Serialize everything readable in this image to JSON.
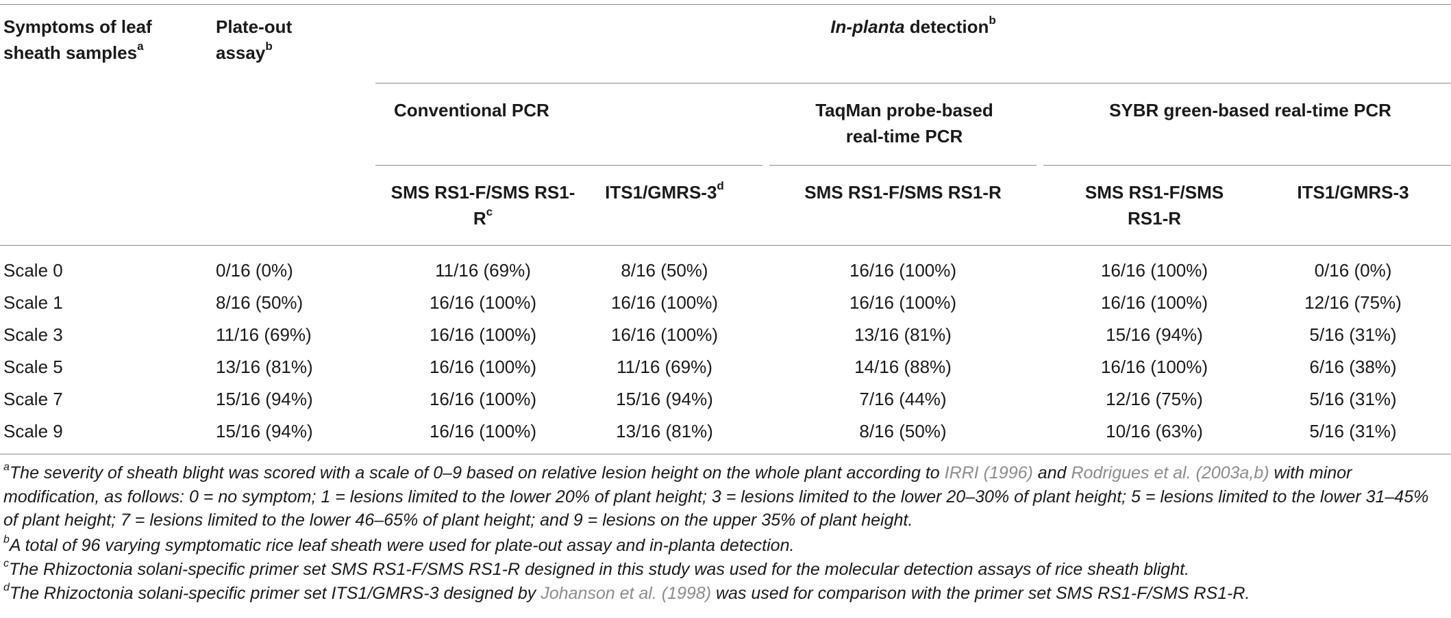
{
  "headers": {
    "col1": "Symptoms of leaf sheath samples",
    "col1_sup": "a",
    "col2": "Plate-out assay",
    "col2_sup": "b",
    "group_in_planta_italic": "In-planta",
    "group_in_planta_rest": " detection",
    "group_in_planta_sup": "b",
    "sub_conventional": "Conventional PCR",
    "sub_taqman": "TaqMan probe-based real-time PCR",
    "sub_sybr": "SYBR green-based real-time PCR",
    "primer_conv_sms": "SMS RS1-F/SMS RS1-R",
    "primer_conv_sms_sup": "c",
    "primer_conv_its": "ITS1/GMRS-3",
    "primer_conv_its_sup": "d",
    "primer_taq_sms": "SMS RS1-F/SMS RS1-R",
    "primer_sybr_sms": "SMS RS1-F/SMS RS1-R",
    "primer_sybr_its": "ITS1/GMRS-3"
  },
  "rows": [
    {
      "scale": "Scale 0",
      "plate": "0/16 (0%)",
      "conv_sms": "11/16 (69%)",
      "conv_its": "8/16 (50%)",
      "taq_sms": "16/16 (100%)",
      "sybr_sms": "16/16 (100%)",
      "sybr_its": "0/16 (0%)"
    },
    {
      "scale": "Scale 1",
      "plate": "8/16 (50%)",
      "conv_sms": "16/16 (100%)",
      "conv_its": "16/16 (100%)",
      "taq_sms": "16/16 (100%)",
      "sybr_sms": "16/16 (100%)",
      "sybr_its": "12/16 (75%)"
    },
    {
      "scale": "Scale 3",
      "plate": "11/16 (69%)",
      "conv_sms": "16/16 (100%)",
      "conv_its": "16/16 (100%)",
      "taq_sms": "13/16 (81%)",
      "sybr_sms": "15/16 (94%)",
      "sybr_its": "5/16 (31%)"
    },
    {
      "scale": "Scale 5",
      "plate": "13/16 (81%)",
      "conv_sms": "16/16 (100%)",
      "conv_its": "11/16 (69%)",
      "taq_sms": "14/16 (88%)",
      "sybr_sms": "16/16 (100%)",
      "sybr_its": "6/16 (38%)"
    },
    {
      "scale": "Scale 7",
      "plate": "15/16 (94%)",
      "conv_sms": "16/16 (100%)",
      "conv_its": "15/16 (94%)",
      "taq_sms": "7/16 (44%)",
      "sybr_sms": "12/16 (75%)",
      "sybr_its": "5/16 (31%)"
    },
    {
      "scale": "Scale 9",
      "plate": "15/16 (94%)",
      "conv_sms": "16/16 (100%)",
      "conv_its": "13/16 (81%)",
      "taq_sms": "8/16 (50%)",
      "sybr_sms": "10/16 (63%)",
      "sybr_its": "5/16 (31%)"
    }
  ],
  "footnotes": {
    "a_sup": "a",
    "a_text1": "The severity of sheath blight was scored with a scale of 0–9 based on relative lesion height on the whole plant according to ",
    "a_ref1": "IRRI (1996)",
    "a_text2": " and ",
    "a_ref2": "Rodrigues et al. (2003a,b)",
    "a_text3": " with minor modification, as follows: 0 = no symptom; 1 = lesions limited to the lower 20% of plant height; 3 = lesions limited to the lower 20–30% of plant height; 5 = lesions limited to the lower 31–45% of plant height; 7 = lesions limited to the lower 46–65% of plant height; and 9 = lesions on the upper 35% of plant height.",
    "b_sup": "b",
    "b_text": "A total of 96 varying symptomatic rice leaf sheath were used for plate-out assay and in-planta detection.",
    "c_sup": "c",
    "c_text": "The Rhizoctonia solani-specific primer set SMS RS1-F/SMS RS1-R designed in this study was used for the molecular detection assays of rice sheath blight.",
    "d_sup": "d",
    "d_text1": "The Rhizoctonia solani-specific primer set ITS1/GMRS-3 designed by ",
    "d_ref": "Johanson et al. (1998)",
    "d_text2": " was used for comparison with the primer set SMS RS1-F/SMS RS1-R."
  }
}
